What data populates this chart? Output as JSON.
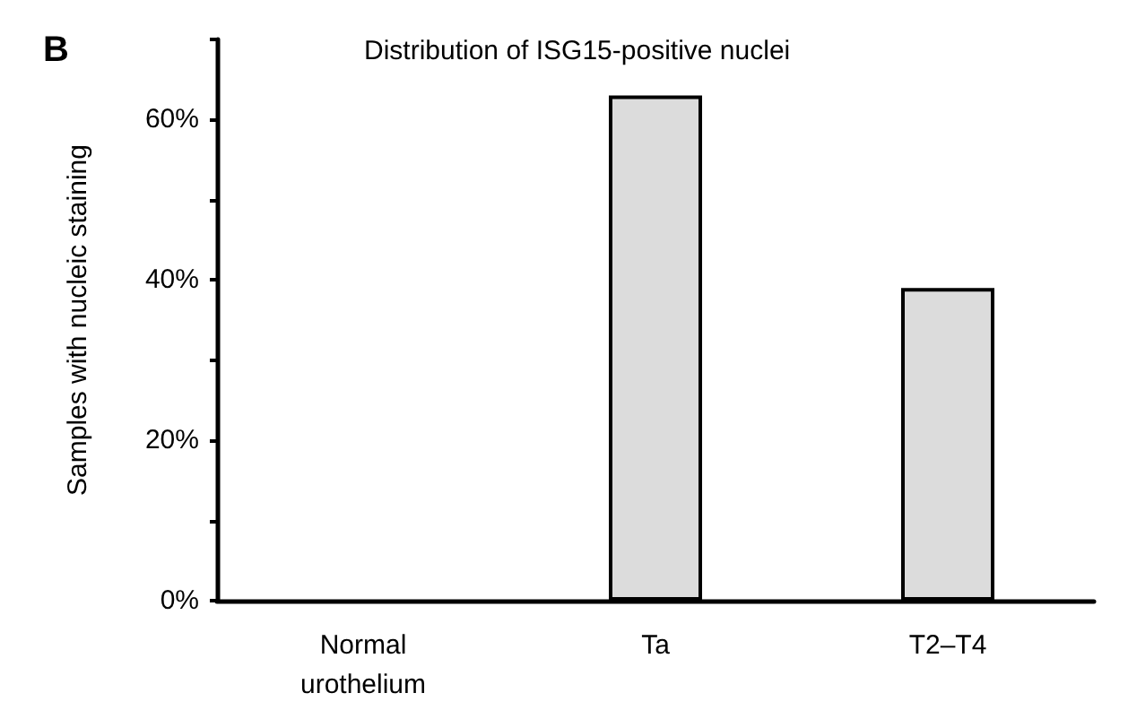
{
  "chart_data": {
    "type": "bar",
    "title": "Distribution of ISG15-positive nuclei",
    "ylabel": "Samples with nucleic staining",
    "categories": [
      "Normal\nurothelium",
      "Ta",
      "T2–T4"
    ],
    "values": [
      0,
      63,
      39
    ],
    "color": "#dcdcdc",
    "ylim": [
      0,
      70
    ],
    "yticks": [
      {
        "value": 0,
        "label": "0%"
      },
      {
        "value": 10,
        "label": null
      },
      {
        "value": 20,
        "label": "20%"
      },
      {
        "value": 30,
        "label": null
      },
      {
        "value": 40,
        "label": "40%"
      },
      {
        "value": 50,
        "label": null
      },
      {
        "value": 60,
        "label": "60%"
      },
      {
        "value": 70,
        "label": null
      }
    ],
    "annotations": [
      "B"
    ],
    "grid": false
  }
}
